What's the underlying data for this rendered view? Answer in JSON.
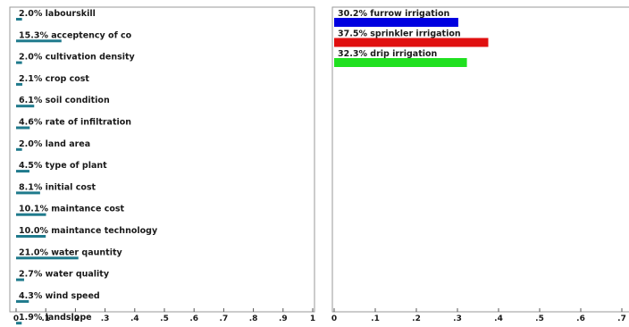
{
  "chart_data": [
    {
      "type": "bar",
      "orientation": "horizontal",
      "categories": [
        "labourskill",
        "acceptency of co",
        "cultivation density",
        "crop cost",
        "soil condition",
        "rate of infiltration",
        "land area",
        "type of plant",
        "initial cost",
        "maintance cost",
        "maintance technology",
        "water qauntity",
        "water quality",
        "wind speed",
        "landslope"
      ],
      "value_labels": [
        "2.0%",
        "15.3%",
        "2.0%",
        "2.1%",
        "6.1%",
        "4.6%",
        "2.0%",
        "4.5%",
        "8.1%",
        "10.1%",
        "10.0%",
        "21.0%",
        "2.7%",
        "4.3%",
        "1.9%"
      ],
      "values": [
        0.02,
        0.153,
        0.02,
        0.021,
        0.061,
        0.046,
        0.02,
        0.045,
        0.081,
        0.101,
        0.1,
        0.21,
        0.027,
        0.043,
        0.019
      ],
      "bar_color": "#1f7a8c",
      "xlim": [
        0,
        1
      ],
      "xticks": [
        "0",
        ".1",
        ".2",
        ".3",
        ".4",
        ".5",
        ".6",
        ".7",
        ".8",
        ".9",
        "1"
      ],
      "grid": false
    },
    {
      "type": "bar",
      "orientation": "horizontal",
      "categories": [
        "furrow irrigation",
        "sprinkler irrigation",
        "drip irrigation"
      ],
      "value_labels": [
        "30.2%",
        "37.5%",
        "32.3%"
      ],
      "values": [
        0.302,
        0.375,
        0.323
      ],
      "colors": [
        "#0000e0",
        "#e01010",
        "#20e020"
      ],
      "xlim": [
        0,
        0.8
      ],
      "xticks": [
        "0",
        ".1",
        ".2",
        ".3",
        ".4",
        ".5",
        ".6",
        ".7"
      ],
      "grid": false
    }
  ]
}
